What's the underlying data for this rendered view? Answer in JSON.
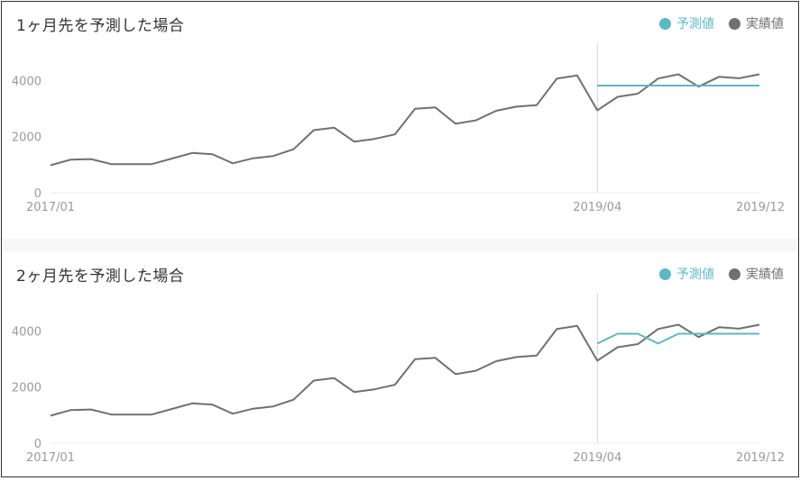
{
  "colors": {
    "forecast": "#5bb8c5",
    "actual": "#707070",
    "axis_text": "#9a9a9a",
    "title_text": "#333333"
  },
  "legend": {
    "forecast_label": "予測値",
    "actual_label": "実績値"
  },
  "chart_data": [
    {
      "type": "line",
      "title": "1ヶ月先を予測した場合",
      "x": [
        "2017/01",
        "2017/02",
        "2017/03",
        "2017/04",
        "2017/05",
        "2017/06",
        "2017/07",
        "2017/08",
        "2017/09",
        "2017/10",
        "2017/11",
        "2017/12",
        "2018/01",
        "2018/02",
        "2018/03",
        "2018/04",
        "2018/05",
        "2018/06",
        "2018/07",
        "2018/08",
        "2018/09",
        "2018/10",
        "2018/11",
        "2018/12",
        "2019/01",
        "2019/02",
        "2019/03",
        "2019/04",
        "2019/05",
        "2019/06",
        "2019/07",
        "2019/08",
        "2019/09",
        "2019/10",
        "2019/11",
        "2019/12"
      ],
      "x_tick_labels": [
        "2017/01",
        "2019/04",
        "2019/12"
      ],
      "y_ticks": [
        0,
        2000,
        4000
      ],
      "ylim": [
        0,
        5200
      ],
      "series": [
        {
          "name": "実績値",
          "values": [
            980,
            1180,
            1200,
            1020,
            1020,
            1020,
            1220,
            1420,
            1370,
            1050,
            1230,
            1310,
            1550,
            2230,
            2320,
            1820,
            1920,
            2080,
            2990,
            3040,
            2460,
            2580,
            2920,
            3070,
            3120,
            4070,
            4180,
            2940,
            3420,
            3530,
            4070,
            4220,
            3780,
            4130,
            4080,
            4220
          ]
        },
        {
          "name": "予測値",
          "values": [
            null,
            null,
            null,
            null,
            null,
            null,
            null,
            null,
            null,
            null,
            null,
            null,
            null,
            null,
            null,
            null,
            null,
            null,
            null,
            null,
            null,
            null,
            null,
            null,
            null,
            null,
            null,
            3820,
            3820,
            3820,
            3820,
            3820,
            3820,
            3820,
            3820,
            3820
          ]
        }
      ],
      "forecast_start": "2019/04",
      "grid": false,
      "legend_position": "top-right"
    },
    {
      "type": "line",
      "title": "2ヶ月先を予測した場合",
      "x": [
        "2017/01",
        "2017/02",
        "2017/03",
        "2017/04",
        "2017/05",
        "2017/06",
        "2017/07",
        "2017/08",
        "2017/09",
        "2017/10",
        "2017/11",
        "2017/12",
        "2018/01",
        "2018/02",
        "2018/03",
        "2018/04",
        "2018/05",
        "2018/06",
        "2018/07",
        "2018/08",
        "2018/09",
        "2018/10",
        "2018/11",
        "2018/12",
        "2019/01",
        "2019/02",
        "2019/03",
        "2019/04",
        "2019/05",
        "2019/06",
        "2019/07",
        "2019/08",
        "2019/09",
        "2019/10",
        "2019/11",
        "2019/12"
      ],
      "x_tick_labels": [
        "2017/01",
        "2019/04",
        "2019/12"
      ],
      "y_ticks": [
        0,
        2000,
        4000
      ],
      "ylim": [
        0,
        5200
      ],
      "series": [
        {
          "name": "実績値",
          "values": [
            980,
            1180,
            1200,
            1020,
            1020,
            1020,
            1220,
            1420,
            1370,
            1050,
            1230,
            1310,
            1550,
            2230,
            2320,
            1820,
            1920,
            2080,
            2990,
            3040,
            2460,
            2580,
            2920,
            3070,
            3120,
            4070,
            4180,
            2940,
            3420,
            3530,
            4070,
            4220,
            3780,
            4130,
            4080,
            4220
          ]
        },
        {
          "name": "予測値",
          "values": [
            null,
            null,
            null,
            null,
            null,
            null,
            null,
            null,
            null,
            null,
            null,
            null,
            null,
            null,
            null,
            null,
            null,
            null,
            null,
            null,
            null,
            null,
            null,
            null,
            null,
            null,
            null,
            3550,
            3900,
            3900,
            3550,
            3900,
            3900,
            3900,
            3900,
            3900
          ]
        }
      ],
      "forecast_start": "2019/04",
      "grid": false,
      "legend_position": "top-right"
    }
  ]
}
